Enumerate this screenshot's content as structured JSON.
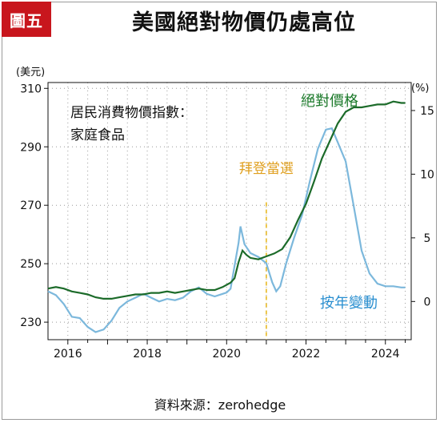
{
  "header": {
    "badge": "圖五",
    "title": "美國絕對物價仍處高位"
  },
  "footer": {
    "source": "資料來源：zerohedge"
  },
  "colors": {
    "absolute": "#1c6b2a",
    "yoy": "#7cb8dc",
    "event_line": "#e8b923",
    "badge": "#c8161d"
  },
  "chart_data": {
    "type": "line",
    "title": "美國絕對物價仍處高位",
    "note_line1": "居民消費物價指數：",
    "note_line2": "家庭食品",
    "y_left": {
      "unit": "(美元)",
      "range": [
        224,
        312
      ],
      "ticks": [
        230,
        250,
        270,
        290,
        310
      ]
    },
    "y_right": {
      "unit": "(%)",
      "range": [
        -3,
        17.2
      ],
      "ticks": [
        0,
        5,
        10,
        15
      ]
    },
    "x_range": [
      2015.5,
      2024.65
    ],
    "x_ticks": [
      2016,
      2018,
      2020,
      2022,
      2024
    ],
    "grid": "dotted",
    "event": {
      "x": 2021.0,
      "label": "拜登當選"
    },
    "series": [
      {
        "name": "絕對價格",
        "axis": "left",
        "x": [
          2015.5,
          2015.7,
          2015.9,
          2016.1,
          2016.3,
          2016.5,
          2016.7,
          2016.9,
          2017.1,
          2017.3,
          2017.5,
          2017.7,
          2017.9,
          2018.1,
          2018.3,
          2018.5,
          2018.7,
          2018.9,
          2019.1,
          2019.3,
          2019.5,
          2019.7,
          2019.9,
          2020.1,
          2020.2,
          2020.3,
          2020.4,
          2020.5,
          2020.6,
          2020.8,
          2021.0,
          2021.2,
          2021.4,
          2021.6,
          2021.8,
          2022.0,
          2022.2,
          2022.4,
          2022.6,
          2022.8,
          2023.0,
          2023.2,
          2023.4,
          2023.6,
          2023.8,
          2024.0,
          2024.2,
          2024.4,
          2024.5
        ],
        "y": [
          241.5,
          242.0,
          241.5,
          240.5,
          240.0,
          239.5,
          238.5,
          238.0,
          238.0,
          238.5,
          239.0,
          239.5,
          239.5,
          240.0,
          240.0,
          240.5,
          240.0,
          240.5,
          241.0,
          241.5,
          241.0,
          241.0,
          242.0,
          243.5,
          245.0,
          250.5,
          254.5,
          253.0,
          252.0,
          251.5,
          252.5,
          253.5,
          255.0,
          259.0,
          265.0,
          270.5,
          278.0,
          286.0,
          292.0,
          298.0,
          302.0,
          303.5,
          303.5,
          304.0,
          304.5,
          304.5,
          305.5,
          305.0,
          305.0
        ]
      },
      {
        "name": "按年變動",
        "axis": "right",
        "x": [
          2015.5,
          2015.7,
          2015.9,
          2016.1,
          2016.3,
          2016.5,
          2016.7,
          2016.9,
          2017.1,
          2017.3,
          2017.5,
          2017.7,
          2017.9,
          2018.1,
          2018.3,
          2018.5,
          2018.7,
          2018.9,
          2019.1,
          2019.3,
          2019.5,
          2019.7,
          2019.9,
          2020.0,
          2020.1,
          2020.2,
          2020.3,
          2020.35,
          2020.45,
          2020.6,
          2020.8,
          2021.0,
          2021.15,
          2021.25,
          2021.35,
          2021.5,
          2021.7,
          2021.9,
          2022.1,
          2022.3,
          2022.5,
          2022.65,
          2022.8,
          2023.0,
          2023.2,
          2023.4,
          2023.6,
          2023.8,
          2024.0,
          2024.2,
          2024.4,
          2024.5
        ],
        "y": [
          0.8,
          0.5,
          -0.2,
          -1.2,
          -1.3,
          -2.0,
          -2.4,
          -2.2,
          -1.5,
          -0.5,
          0.0,
          0.3,
          0.6,
          0.3,
          0.0,
          0.2,
          0.1,
          0.3,
          0.8,
          1.1,
          0.6,
          0.4,
          0.6,
          0.7,
          1.0,
          2.8,
          4.6,
          5.9,
          4.5,
          3.8,
          3.5,
          3.0,
          1.5,
          0.8,
          1.2,
          3.0,
          5.0,
          6.8,
          9.5,
          12.0,
          13.5,
          13.6,
          12.5,
          11.0,
          7.5,
          4.0,
          2.2,
          1.4,
          1.2,
          1.2,
          1.1,
          1.1
        ]
      }
    ],
    "labels": {
      "absolute": "絕對價格",
      "yoy": "按年變動"
    }
  }
}
